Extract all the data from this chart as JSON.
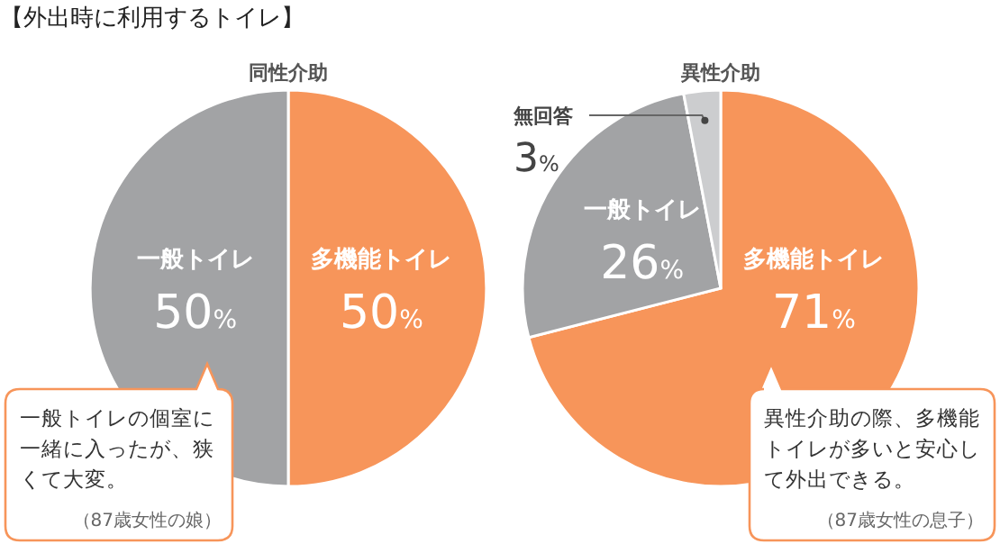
{
  "chart_data": [
    {
      "type": "pie",
      "title": "【外出時に利用するトイレ】",
      "subtitle": "同性介助",
      "categories": [
        "多機能トイレ",
        "一般トイレ"
      ],
      "values": [
        50,
        50
      ],
      "colors": [
        "#f7955a",
        "#a2a3a5"
      ],
      "value_labels": [
        "50%",
        "50%"
      ],
      "annotations": [
        "一般トイレの個室に一緒に入ったが、狭くて大変。",
        "（87歳女性の娘）"
      ]
    },
    {
      "type": "pie",
      "subtitle": "異性介助",
      "categories": [
        "多機能トイレ",
        "一般トイレ",
        "無回答"
      ],
      "values": [
        71,
        26,
        3
      ],
      "colors": [
        "#f7955a",
        "#a2a3a5",
        "#cccdcf"
      ],
      "value_labels": [
        "71%",
        "26%",
        "3%"
      ],
      "annotations": [
        "異性介助の際、多機能トイレが多いと安心して外出できる。",
        "（87歳女性の息子）"
      ]
    }
  ]
}
